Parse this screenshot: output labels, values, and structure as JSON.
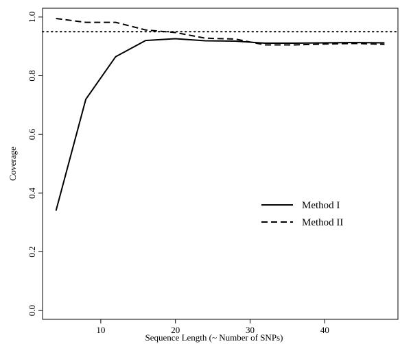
{
  "chart_data": {
    "type": "line",
    "title": "",
    "xlabel": "Sequence Length (~ Number of SNPs)",
    "ylabel": "Coverage",
    "xlim": [
      2.2,
      49.8
    ],
    "ylim": [
      -0.03,
      1.03
    ],
    "x_ticks": [
      10,
      20,
      30,
      40
    ],
    "x_tick_labels": [
      "10",
      "20",
      "30",
      "40"
    ],
    "y_ticks": [
      0.0,
      0.2,
      0.4,
      0.6,
      0.8,
      1.0
    ],
    "y_tick_labels": [
      "0.0",
      "0.2",
      "0.4",
      "0.6",
      "0.8",
      "1.0"
    ],
    "reference_line": {
      "y": 0.95,
      "style": "dotted"
    },
    "grid": false,
    "legend_position": "center-right",
    "series": [
      {
        "name": "Method I",
        "style": "solid",
        "x": [
          4,
          8,
          12,
          16,
          20,
          24,
          28,
          32,
          36,
          40,
          44,
          48
        ],
        "y": [
          0.34,
          0.72,
          0.865,
          0.92,
          0.926,
          0.919,
          0.918,
          0.911,
          0.911,
          0.912,
          0.913,
          0.912
        ]
      },
      {
        "name": "Method II",
        "style": "dashed",
        "x": [
          4,
          8,
          12,
          16,
          20,
          24,
          28,
          32,
          36,
          40,
          44,
          48
        ],
        "y": [
          0.995,
          0.982,
          0.982,
          0.956,
          0.947,
          0.928,
          0.925,
          0.905,
          0.905,
          0.908,
          0.91,
          0.907
        ]
      }
    ]
  }
}
